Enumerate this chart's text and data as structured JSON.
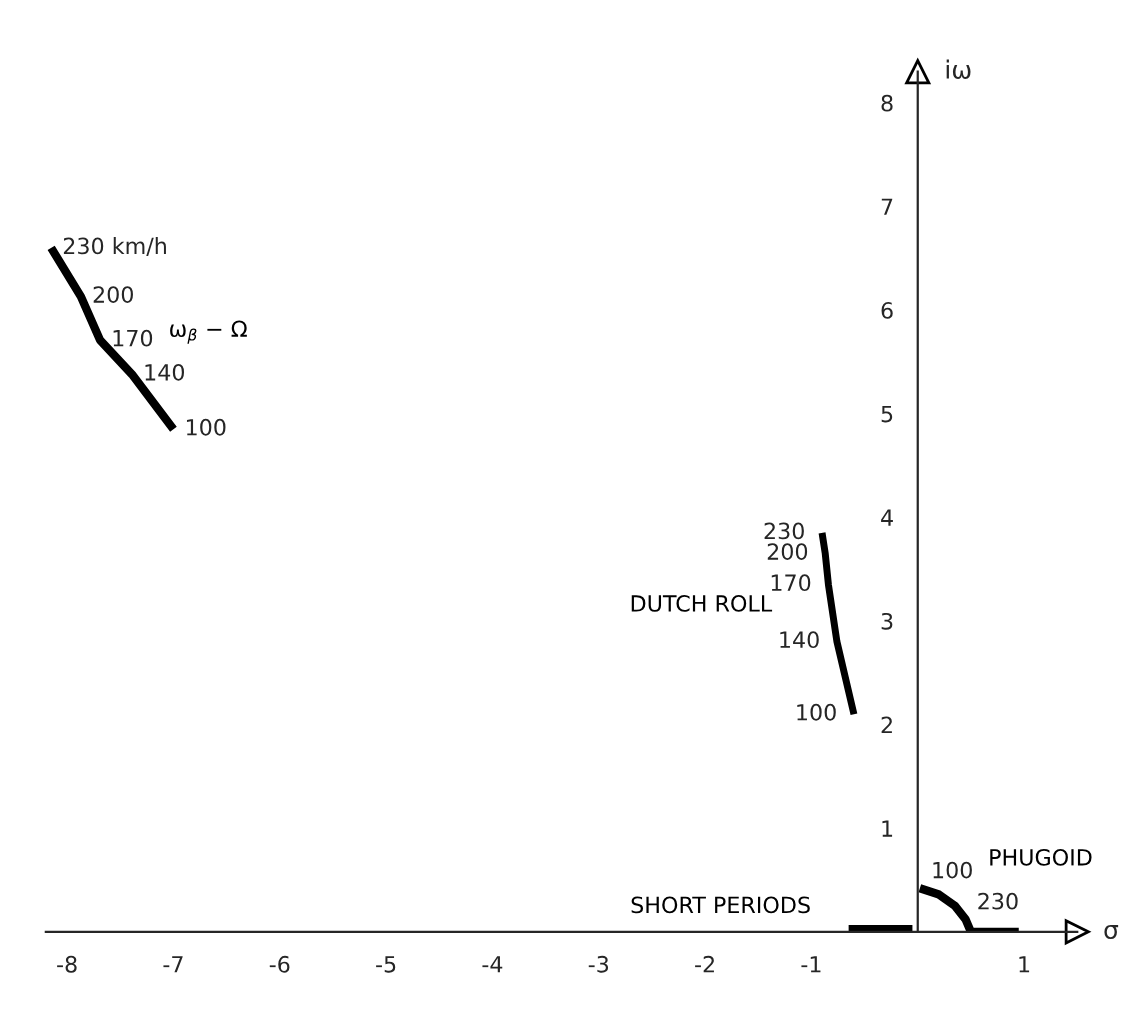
{
  "chart_data": {
    "type": "line",
    "xlabel": "σ",
    "ylabel": "iω",
    "xlim": [
      -8.2,
      1.5
    ],
    "ylim": [
      0,
      8.3
    ],
    "xticks": [
      -8,
      -7,
      -6,
      -5,
      -4,
      -3,
      -2,
      -1,
      1
    ],
    "yticks": [
      1,
      2,
      3,
      4,
      5,
      6,
      7,
      8
    ],
    "grid": false,
    "legend": false,
    "marker": "none",
    "line_style": "solid",
    "series": [
      {
        "name": "ω$_{β}$ − Ω",
        "color": "#000000",
        "x": [
          -8.15,
          -7.87,
          -7.69,
          -7.39,
          -7.0
        ],
        "values": [
          6.6,
          6.13,
          5.71,
          5.38,
          4.85
        ]
      },
      {
        "name": "DUTCH ROLL",
        "color": "#000000",
        "x": [
          -0.9,
          -0.87,
          -0.84,
          -0.76,
          -0.6
        ],
        "values": [
          3.85,
          3.65,
          3.35,
          2.8,
          2.1
        ]
      },
      {
        "name": "PHUGOID",
        "color": "#000000",
        "x": [
          0.02,
          0.2,
          0.35,
          0.45,
          0.5,
          0.7,
          0.95
        ],
        "values": [
          0.42,
          0.36,
          0.25,
          0.12,
          0,
          0,
          0
        ]
      },
      {
        "name": "SHORT PERIODS",
        "color": "#000000",
        "x": [
          -0.65,
          -0.05
        ],
        "values": [
          0,
          0
        ]
      }
    ],
    "annotations": [
      {
        "text": "230 km/h",
        "x": -8.15,
        "y": 6.6
      },
      {
        "text": "200",
        "x": -7.87,
        "y": 6.13
      },
      {
        "text": "170",
        "x": -7.69,
        "y": 5.71
      },
      {
        "text": "140",
        "x": -7.39,
        "y": 5.38
      },
      {
        "text": "100",
        "x": -7.0,
        "y": 4.85
      },
      {
        "text": "230",
        "x": -0.9,
        "y": 3.85
      },
      {
        "text": "200",
        "x": -0.87,
        "y": 3.65
      },
      {
        "text": "170",
        "x": -0.84,
        "y": 3.35
      },
      {
        "text": "140",
        "x": -0.76,
        "y": 2.8
      },
      {
        "text": "100",
        "x": -0.6,
        "y": 2.1
      },
      {
        "text": "100",
        "x": 0.02,
        "y": 0.42
      },
      {
        "text": "230",
        "x": 0.45,
        "y": 0.12
      }
    ]
  }
}
